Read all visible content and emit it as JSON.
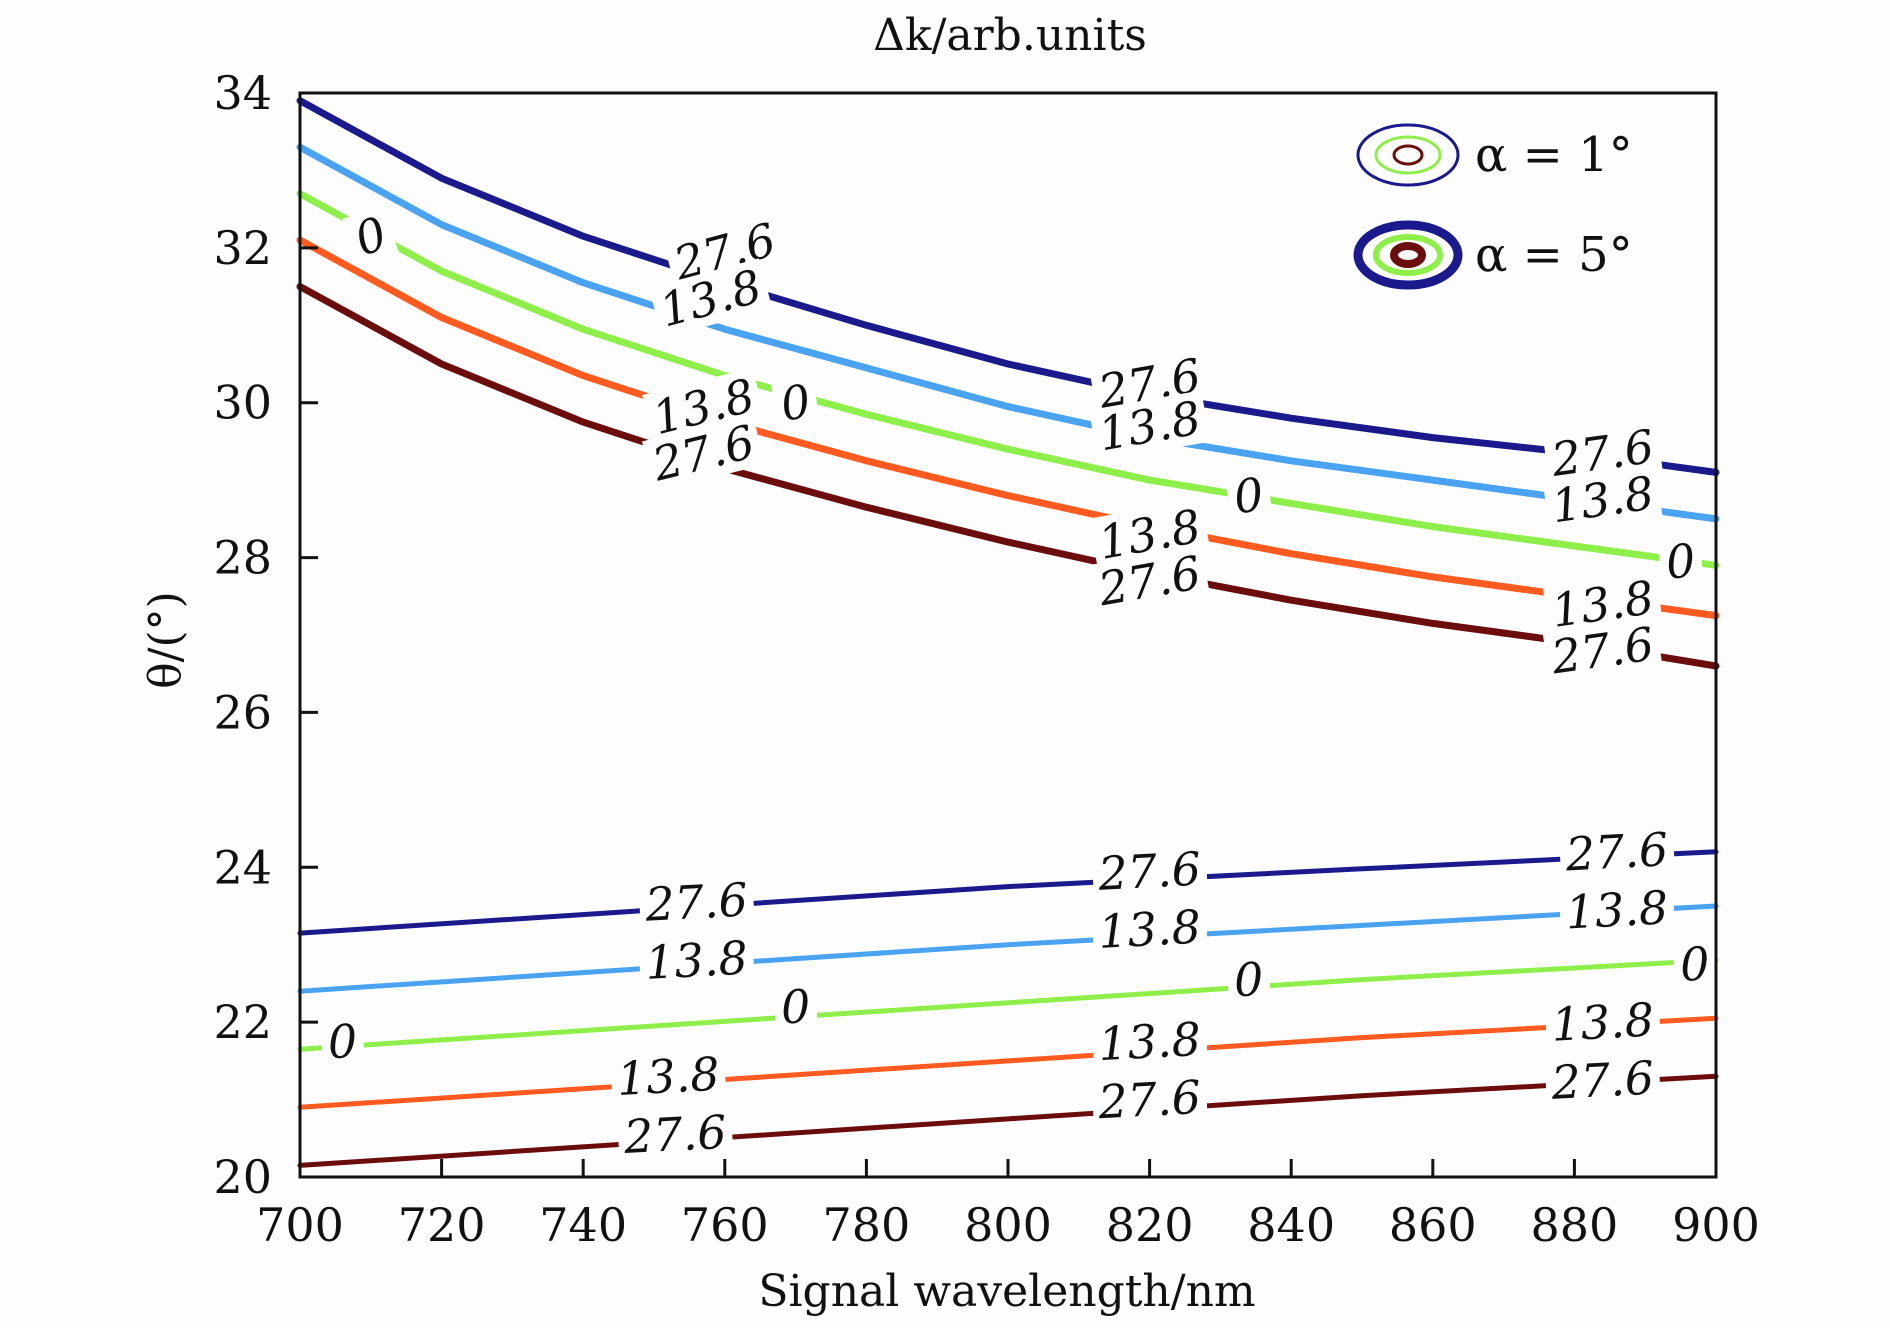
{
  "chart_data": {
    "type": "line",
    "title": "Δk/arb.units",
    "xlabel": "Signal wavelength/nm",
    "ylabel": "θ/(°)",
    "xlim": [
      700,
      900
    ],
    "ylim": [
      20,
      34
    ],
    "xticks": [
      700,
      720,
      740,
      760,
      780,
      800,
      820,
      840,
      860,
      880,
      900
    ],
    "yticks": [
      20,
      22,
      24,
      26,
      28,
      30,
      32,
      34
    ],
    "grid": false,
    "legend_position": "top-right",
    "legend": [
      {
        "label": "α = 1°",
        "style": "thin"
      },
      {
        "label": "α = 5°",
        "style": "thick"
      }
    ],
    "colors": {
      "27.6_upper": "#1a1a8c",
      "13.8_upper": "#4aa3f0",
      "0": "#8fef4a",
      "13.8_lower": "#ff5a1f",
      "27.6_lower": "#6b0d0d"
    },
    "series": [
      {
        "group": "upper",
        "level": "27.6",
        "color": "#1a1a8c",
        "x": [
          700,
          720,
          740,
          760,
          780,
          800,
          820,
          840,
          860,
          880,
          900
        ],
        "y": [
          33.9,
          32.9,
          32.15,
          31.55,
          31.0,
          30.5,
          30.1,
          29.8,
          29.55,
          29.35,
          29.1
        ]
      },
      {
        "group": "upper",
        "level": "13.8",
        "color": "#4aa3f0",
        "x": [
          700,
          720,
          740,
          760,
          780,
          800,
          820,
          840,
          860,
          880,
          900
        ],
        "y": [
          33.3,
          32.3,
          31.55,
          30.95,
          30.45,
          29.95,
          29.55,
          29.25,
          29.0,
          28.75,
          28.5
        ]
      },
      {
        "group": "upper",
        "level": "0",
        "color": "#8fef4a",
        "x": [
          700,
          720,
          740,
          760,
          780,
          800,
          820,
          840,
          860,
          880,
          900
        ],
        "y": [
          32.7,
          31.7,
          30.95,
          30.35,
          29.85,
          29.4,
          29.0,
          28.7,
          28.4,
          28.15,
          27.9
        ]
      },
      {
        "group": "upper",
        "level": "13.8",
        "color": "#ff5a1f",
        "x": [
          700,
          720,
          740,
          760,
          780,
          800,
          820,
          840,
          860,
          880,
          900
        ],
        "y": [
          32.1,
          31.1,
          30.35,
          29.75,
          29.25,
          28.8,
          28.4,
          28.05,
          27.75,
          27.5,
          27.25
        ]
      },
      {
        "group": "upper",
        "level": "27.6",
        "color": "#6b0d0d",
        "x": [
          700,
          720,
          740,
          760,
          780,
          800,
          820,
          840,
          860,
          880,
          900
        ],
        "y": [
          31.5,
          30.5,
          29.75,
          29.15,
          28.65,
          28.2,
          27.8,
          27.45,
          27.15,
          26.9,
          26.6
        ]
      },
      {
        "group": "lower",
        "level": "27.6",
        "color": "#1a1a8c",
        "x": [
          700,
          750,
          800,
          850,
          900
        ],
        "y": [
          23.15,
          23.45,
          23.75,
          23.98,
          24.2
        ]
      },
      {
        "group": "lower",
        "level": "13.8",
        "color": "#4aa3f0",
        "x": [
          700,
          750,
          800,
          850,
          900
        ],
        "y": [
          22.4,
          22.7,
          23.0,
          23.25,
          23.5
        ]
      },
      {
        "group": "lower",
        "level": "0",
        "color": "#8fef4a",
        "x": [
          700,
          750,
          800,
          850,
          900
        ],
        "y": [
          21.65,
          21.95,
          22.25,
          22.55,
          22.8
        ]
      },
      {
        "group": "lower",
        "level": "13.8",
        "color": "#ff5a1f",
        "x": [
          700,
          750,
          800,
          850,
          900
        ],
        "y": [
          20.9,
          21.2,
          21.5,
          21.8,
          22.05
        ]
      },
      {
        "group": "lower",
        "level": "27.6",
        "color": "#6b0d0d",
        "x": [
          700,
          750,
          800,
          850,
          900
        ],
        "y": [
          20.15,
          20.45,
          20.75,
          21.05,
          21.3
        ]
      }
    ],
    "contour_labels": [
      {
        "text": "27.6",
        "x": 760,
        "y": 31.95,
        "rot": -15
      },
      {
        "text": "13.8",
        "x": 758,
        "y": 31.35,
        "rot": -15
      },
      {
        "text": "0",
        "x": 710,
        "y": 32.15,
        "rot": -20
      },
      {
        "text": "0",
        "x": 770,
        "y": 30.0,
        "rot": -10
      },
      {
        "text": "13.8",
        "x": 757,
        "y": 29.95,
        "rot": -14
      },
      {
        "text": "27.6",
        "x": 757,
        "y": 29.35,
        "rot": -14
      },
      {
        "text": "27.6",
        "x": 820,
        "y": 30.25,
        "rot": -10
      },
      {
        "text": "13.8",
        "x": 820,
        "y": 29.7,
        "rot": -10
      },
      {
        "text": "0",
        "x": 834,
        "y": 28.8,
        "rot": -8
      },
      {
        "text": "13.8",
        "x": 820,
        "y": 28.3,
        "rot": -10
      },
      {
        "text": "27.6",
        "x": 820,
        "y": 27.7,
        "rot": -10
      },
      {
        "text": "27.6",
        "x": 884,
        "y": 29.35,
        "rot": -8
      },
      {
        "text": "13.8",
        "x": 884,
        "y": 28.75,
        "rot": -8
      },
      {
        "text": "0",
        "x": 895,
        "y": 27.95,
        "rot": -6
      },
      {
        "text": "13.8",
        "x": 884,
        "y": 27.4,
        "rot": -8
      },
      {
        "text": "27.6",
        "x": 884,
        "y": 26.8,
        "rot": -8
      },
      {
        "text": "27.6",
        "x": 756,
        "y": 23.55,
        "rot": -3
      },
      {
        "text": "13.8",
        "x": 756,
        "y": 22.8,
        "rot": -3
      },
      {
        "text": "0",
        "x": 706,
        "y": 21.75,
        "rot": -3
      },
      {
        "text": "0",
        "x": 770,
        "y": 22.2,
        "rot": -3
      },
      {
        "text": "13.8",
        "x": 752,
        "y": 21.3,
        "rot": -3
      },
      {
        "text": "27.6",
        "x": 753,
        "y": 20.55,
        "rot": -3
      },
      {
        "text": "27.6",
        "x": 820,
        "y": 23.95,
        "rot": -3
      },
      {
        "text": "13.8",
        "x": 820,
        "y": 23.2,
        "rot": -3
      },
      {
        "text": "0",
        "x": 834,
        "y": 22.55,
        "rot": -3
      },
      {
        "text": "13.8",
        "x": 820,
        "y": 21.75,
        "rot": -3
      },
      {
        "text": "27.6",
        "x": 820,
        "y": 21.0,
        "rot": -3
      },
      {
        "text": "27.6",
        "x": 886,
        "y": 24.2,
        "rot": -3
      },
      {
        "text": "13.8",
        "x": 886,
        "y": 23.45,
        "rot": -3
      },
      {
        "text": "0",
        "x": 897,
        "y": 22.75,
        "rot": -3
      },
      {
        "text": "13.8",
        "x": 884,
        "y": 22.0,
        "rot": -3
      },
      {
        "text": "27.6",
        "x": 884,
        "y": 21.25,
        "rot": -3
      }
    ]
  }
}
